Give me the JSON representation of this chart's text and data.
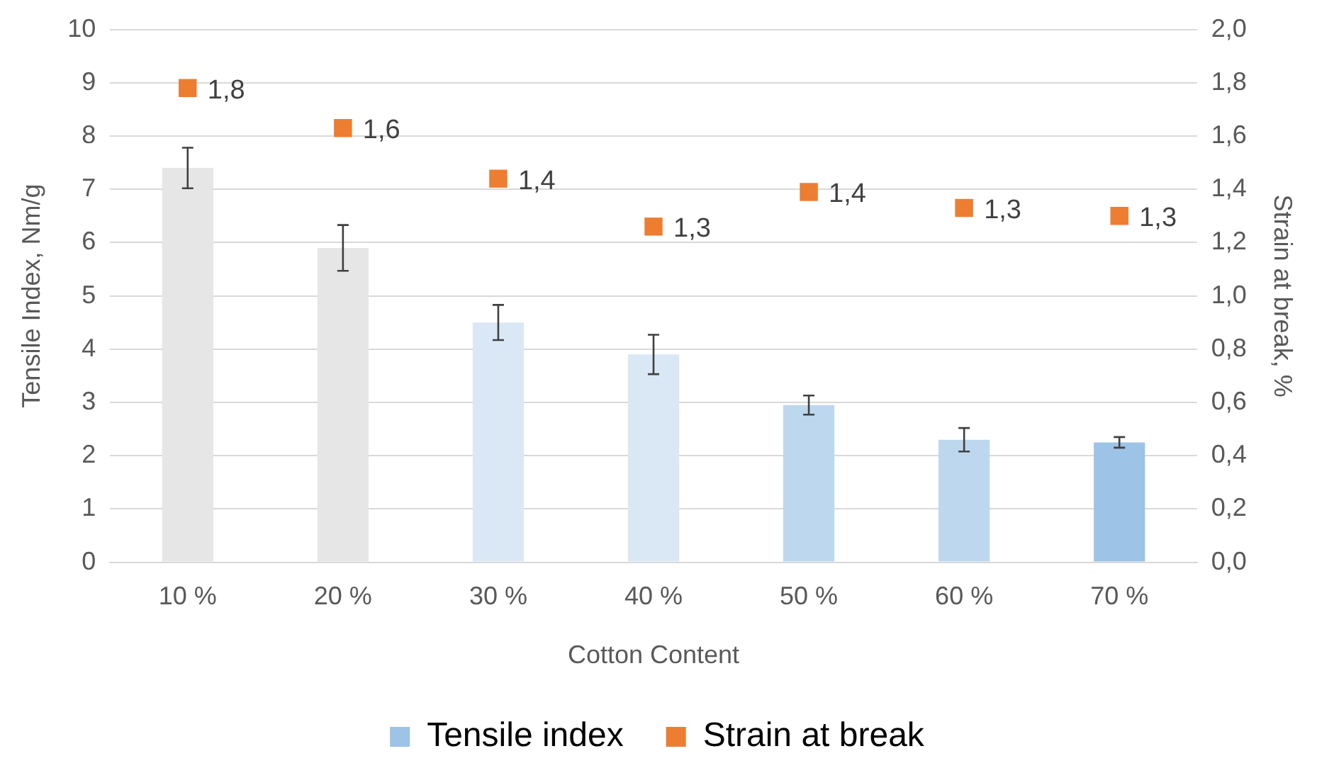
{
  "chart_data": {
    "type": "bar",
    "xlabel": "Cotton Content",
    "ylabel": "Tensile Index, Nm/g",
    "y2label": "Strain at break, %",
    "categories": [
      "10 %",
      "20 %",
      "30 %",
      "40 %",
      "50 %",
      "60 %",
      "70 %"
    ],
    "series": [
      {
        "name": "Tensile index",
        "color": "#9dc3e6",
        "colors": [
          "#e6e6e6",
          "#e6e6e6",
          "#dae8f6",
          "#dae8f6",
          "#bdd7ee",
          "#bdd7ee",
          "#9dc3e6"
        ],
        "values": [
          7.4,
          5.9,
          4.5,
          3.9,
          2.95,
          2.3,
          2.25
        ],
        "errors": [
          0.38,
          0.43,
          0.33,
          0.37,
          0.18,
          0.22,
          0.1
        ]
      },
      {
        "name": "Strain at break",
        "type": "scatter",
        "axis": "y2",
        "color": "#ed7d31",
        "marker": "square",
        "values": [
          1.78,
          1.63,
          1.44,
          1.26,
          1.39,
          1.33,
          1.3
        ],
        "value_labels": [
          "1,8",
          "1,6",
          "1,4",
          "1,3",
          "1,4",
          "1,3",
          "1,3"
        ]
      }
    ],
    "ylim": [
      0,
      10
    ],
    "yticks": [
      0,
      1,
      2,
      3,
      4,
      5,
      6,
      7,
      8,
      9,
      10
    ],
    "y2lim": [
      0,
      2
    ],
    "y2ticks": [
      {
        "value": 0,
        "label": "0,0"
      },
      {
        "value": 0.2,
        "label": "0,2"
      },
      {
        "value": 0.4,
        "label": "0,4"
      },
      {
        "value": 0.6,
        "label": "0,6"
      },
      {
        "value": 0.8,
        "label": "0,8"
      },
      {
        "value": 1,
        "label": "1,0"
      },
      {
        "value": 1.2,
        "label": "1,2"
      },
      {
        "value": 1.4,
        "label": "1,4"
      },
      {
        "value": 1.6,
        "label": "1,6"
      },
      {
        "value": 1.8,
        "label": "1,8"
      },
      {
        "value": 2,
        "label": "2,0"
      }
    ],
    "grid": "y",
    "legend": "bottom"
  }
}
